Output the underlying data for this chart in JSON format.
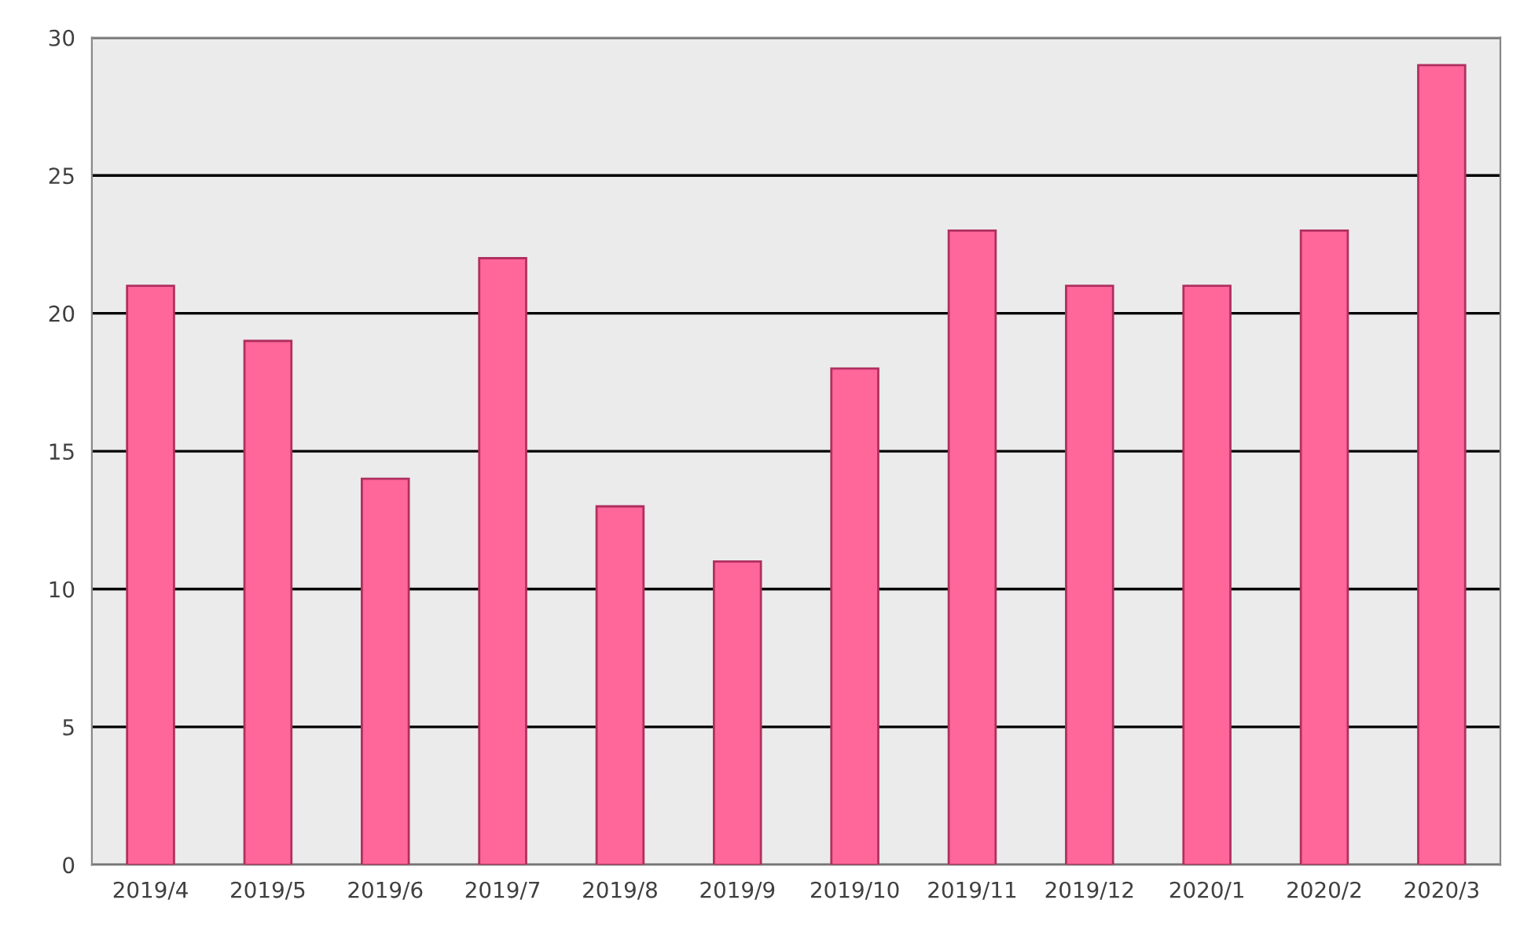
{
  "chart_data": {
    "type": "bar",
    "categories": [
      "2019/4",
      "2019/5",
      "2019/6",
      "2019/7",
      "2019/8",
      "2019/9",
      "2019/10",
      "2019/11",
      "2019/12",
      "2020/1",
      "2020/2",
      "2020/3"
    ],
    "values": [
      21,
      19,
      14,
      22,
      13,
      11,
      18,
      23,
      21,
      21,
      23,
      29
    ],
    "color": "#ff6699",
    "ylim": [
      0,
      30
    ],
    "yticks": [
      0,
      5,
      10,
      15,
      20,
      25,
      30
    ],
    "grid": "y"
  }
}
